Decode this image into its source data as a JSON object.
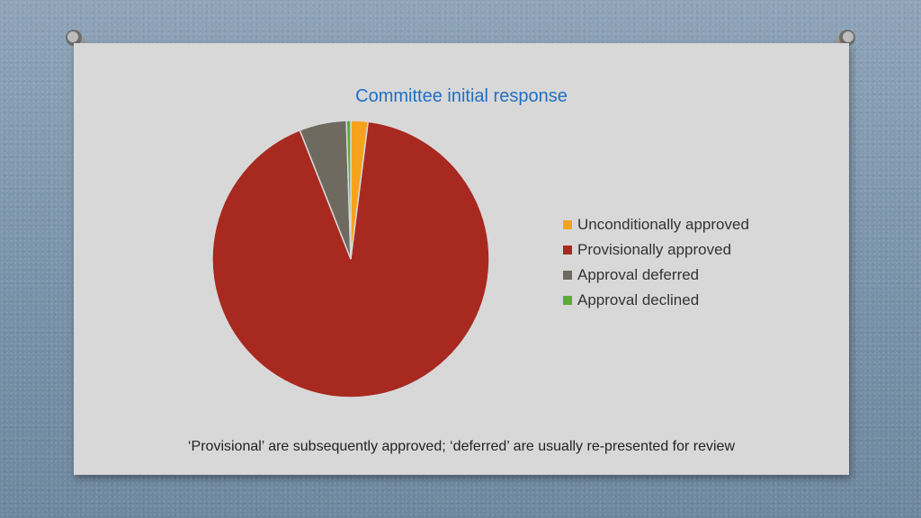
{
  "chart_data": {
    "type": "pie",
    "title": "Committee initial response",
    "categories": [
      "Unconditionally approved",
      "Provisionally approved",
      "Approval deferred",
      "Approval declined"
    ],
    "values": [
      2,
      92,
      5.5,
      0.5
    ],
    "colors": [
      "#f7a21b",
      "#a8291f",
      "#6e6a60",
      "#5aac36"
    ],
    "legend_position": "right"
  },
  "footnote": "‘Provisional’ are subsequently approved; ‘deferred’ are usually re-presented for review"
}
